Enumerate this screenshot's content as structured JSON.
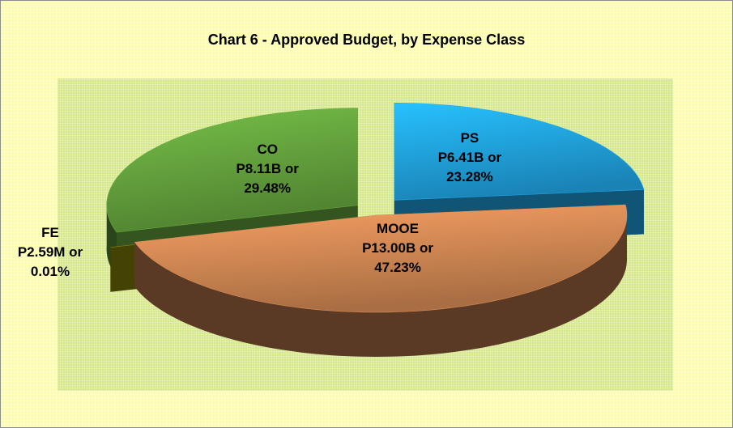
{
  "chart_data": {
    "type": "pie",
    "title": "Chart 6 - Approved Budget, by Expense Class",
    "categories": [
      "PS",
      "MOOE",
      "FE",
      "CO"
    ],
    "values": [
      23.28,
      47.23,
      0.01,
      29.48
    ],
    "value_labels": [
      "P6.41B or 23.28%",
      "P13.00B or 47.23%",
      "P2.59M or 0.01%",
      "P8.11B or 29.48%"
    ],
    "colors": [
      "#1f9ad6",
      "#c7814f",
      "#7d7a08",
      "#5f9a3a"
    ]
  }
}
